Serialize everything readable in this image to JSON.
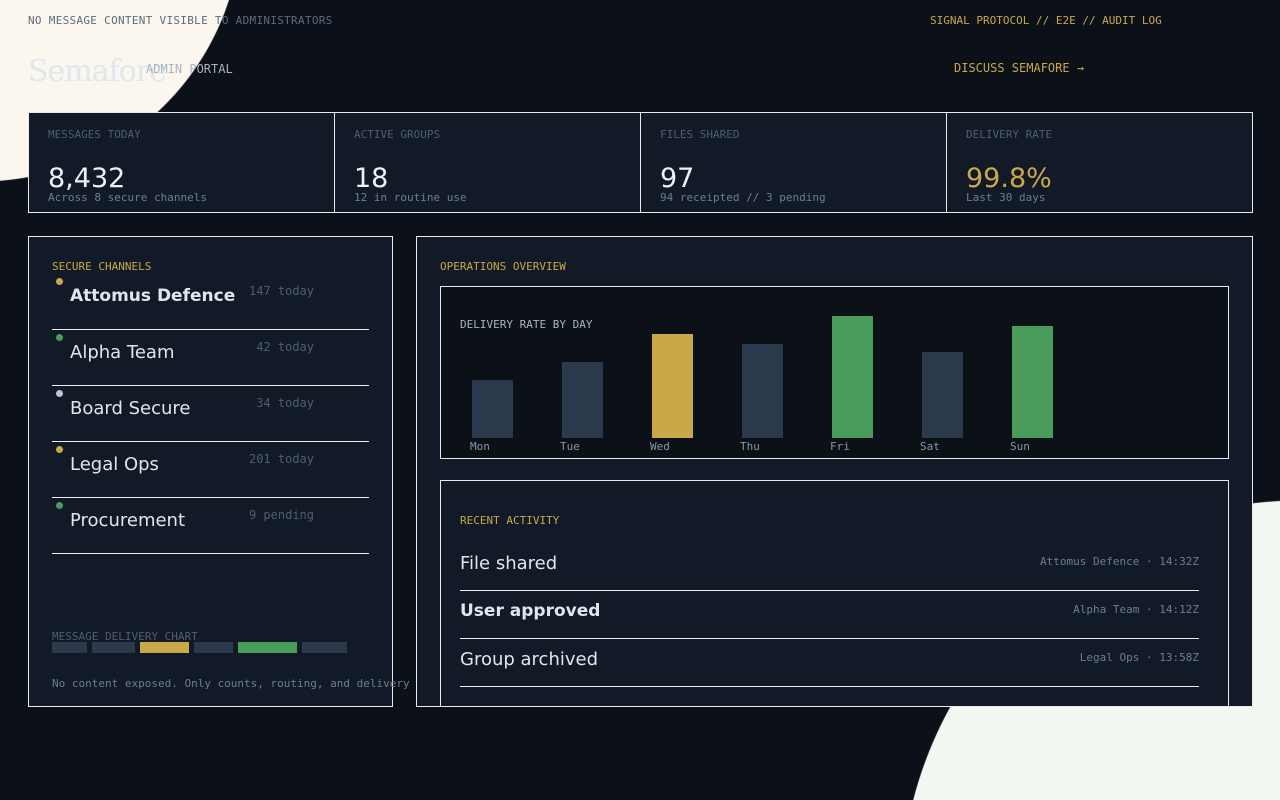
{
  "header": {
    "notice": "NO MESSAGE CONTENT VISIBLE TO ADMINISTRATORS",
    "protocol": "SIGNAL PROTOCOL // E2E // AUDIT LOG",
    "logo": "Semafore",
    "portal": "ADMIN PORTAL",
    "discuss": "DISCUSS SEMAFORE →"
  },
  "stats": [
    {
      "label": "MESSAGES TODAY",
      "value": "8,432",
      "sub": "Across 8 secure channels"
    },
    {
      "label": "ACTIVE GROUPS",
      "value": "18",
      "sub": "12 in routine use"
    },
    {
      "label": "FILES SHARED",
      "value": "97",
      "sub": "94 receipted // 3 pending"
    },
    {
      "label": "DELIVERY RATE",
      "value": "99.8%",
      "sub": "Last 30 days"
    }
  ],
  "channels": {
    "title": "SECURE CHANNELS",
    "items": [
      {
        "name": "Attomus Defence",
        "count": "147 today",
        "color": "#c9a84a"
      },
      {
        "name": "Alpha Team",
        "count": "42 today",
        "color": "#4a9c5a"
      },
      {
        "name": "Board Secure",
        "count": "34 today",
        "color": "#b8c6d6"
      },
      {
        "name": "Legal Ops",
        "count": "201 today",
        "color": "#c9a84a"
      },
      {
        "name": "Procurement",
        "count": "9 pending",
        "color": "#4a9c5a"
      }
    ],
    "mini_chart_label": "MESSAGE DELIVERY CHART",
    "mini_chart": [
      {
        "value": 35,
        "color": "#2a3a4c"
      },
      {
        "value": 43,
        "color": "#2a3a4c"
      },
      {
        "value": 49,
        "color": "#c9a84a"
      },
      {
        "value": 39,
        "color": "#2a3a4c"
      },
      {
        "value": 59,
        "color": "#4a9c5a"
      },
      {
        "value": 45,
        "color": "#2a3a4c"
      }
    ],
    "footnote": "No content exposed. Only counts, routing, and delivery s"
  },
  "overview": {
    "title": "OPERATIONS OVERVIEW"
  },
  "chart_data": {
    "type": "bar",
    "title": "DELIVERY RATE BY DAY",
    "categories": [
      "Mon",
      "Tue",
      "Wed",
      "Thu",
      "Fri",
      "Sat",
      "Sun"
    ],
    "values": [
      58,
      76,
      104,
      94,
      122,
      86,
      112
    ],
    "colors": [
      "#2a3a4c",
      "#2a3a4c",
      "#c9a84a",
      "#2a3a4c",
      "#4a9c5a",
      "#2a3a4c",
      "#4a9c5a"
    ],
    "grid": false
  },
  "activity": {
    "title": "RECENT ACTIVITY",
    "items": [
      {
        "event": "File shared",
        "meta": "Attomus Defence · 14:32Z",
        "bold": false
      },
      {
        "event": "User approved",
        "meta": "Alpha Team · 14:12Z",
        "bold": true
      },
      {
        "event": "Group archived",
        "meta": "Legal Ops · 13:58Z",
        "bold": false
      }
    ]
  }
}
